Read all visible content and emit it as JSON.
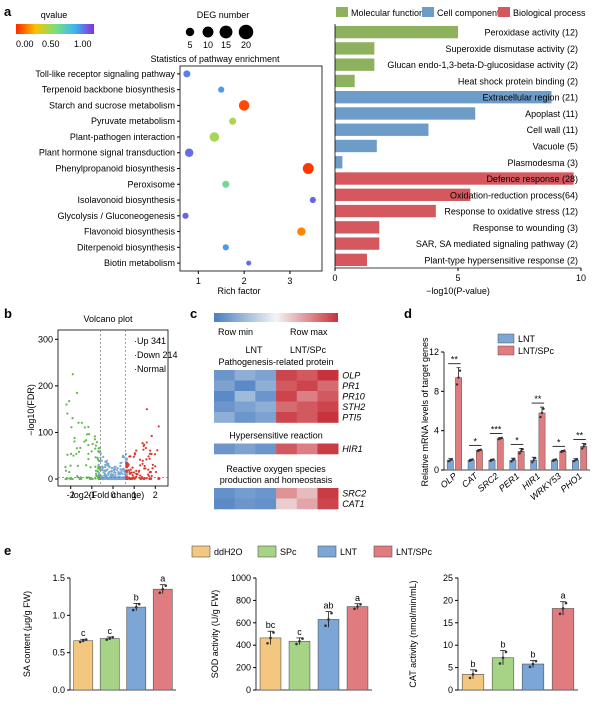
{
  "panels": {
    "a": "a",
    "b": "b",
    "c": "c",
    "d": "d",
    "e": "e"
  },
  "colors": {
    "molecular": "#8db15c",
    "cellular": "#6e9cc9",
    "biological": "#d4585e",
    "lnt": "#7ba6d6",
    "lntspc": "#e07b80",
    "ddh2o": "#f3c77f",
    "spc": "#a7d386",
    "up": "#d93a2e",
    "down": "#5fb84e",
    "normal": "#7aa7d4",
    "volcano_text_normal": "#4a7fc1"
  },
  "chart_data": [
    {
      "id": "a_dot",
      "type": "scatter",
      "title": "Statistics of pathway enrichment",
      "xlabel": "Rich factor",
      "xlim": [
        0.6,
        3.7
      ],
      "xticks": [
        1,
        2,
        3
      ],
      "colorbar": {
        "title": "qvalue",
        "ticks": [
          "0.00",
          "0.50",
          "1.00"
        ]
      },
      "size_legend": {
        "title": "DEG number",
        "values": [
          5,
          10,
          15,
          20
        ]
      },
      "categories": [
        "Toll-like receptor signaling pathway",
        "Terpenoid backbone biosynthesis",
        "Starch and sucrose metabolism",
        "Pyruvate metabolism",
        "Plant-pathogen interaction",
        "Plant hormone signal transduction",
        "Phenylpropanoid biosynthesis",
        "Peroxisome",
        "Isolavonoid biosynthesis",
        "Glycolysis / Gluconeogenesis",
        "Flavonoid biosynthesis",
        "Diterpenoid biosynthesis",
        "Biotin metabolism"
      ],
      "points": [
        {
          "x": 0.75,
          "deg": 3,
          "q": 0.85
        },
        {
          "x": 1.5,
          "deg": 2,
          "q": 0.8
        },
        {
          "x": 2.0,
          "deg": 9,
          "q": 0.05
        },
        {
          "x": 1.75,
          "deg": 3,
          "q": 0.4
        },
        {
          "x": 1.35,
          "deg": 7,
          "q": 0.42
        },
        {
          "x": 0.8,
          "deg": 5,
          "q": 0.88
        },
        {
          "x": 3.4,
          "deg": 10,
          "q": 0.02
        },
        {
          "x": 1.6,
          "deg": 3,
          "q": 0.55
        },
        {
          "x": 3.5,
          "deg": 2,
          "q": 0.9
        },
        {
          "x": 0.72,
          "deg": 2,
          "q": 0.9
        },
        {
          "x": 3.25,
          "deg": 5,
          "q": 0.15
        },
        {
          "x": 1.6,
          "deg": 2,
          "q": 0.8
        },
        {
          "x": 2.1,
          "deg": 1,
          "q": 0.88
        }
      ]
    },
    {
      "id": "a_bar",
      "type": "bar",
      "xlabel": "−log10(P-value)",
      "xlim": [
        0,
        10
      ],
      "xticks": [
        0,
        5,
        10
      ],
      "legend": [
        "Molecular function",
        "Cell component",
        "Biological process"
      ],
      "categories": [
        "Peroxidase activity (12)",
        "Superoxide dismutase activity (2)",
        "Glucan endo-1,3-beta-D-glucosidase activity (2)",
        "Heat shock protein binding (2)",
        "Extracellular region (21)",
        "Apoplast (11)",
        "Cell wall (11)",
        "Vacuole (5)",
        "Plasmodesma (3)",
        "Defence response (28)",
        "Oxidation-reduction process(64)",
        "Response to oxidative stress (12)",
        "Response to wounding (3)",
        "SAR, SA mediated signaling pathway (2)",
        "Plant-type hypersensitive response (2)"
      ],
      "values": [
        5.0,
        1.6,
        1.6,
        0.8,
        8.8,
        5.7,
        3.8,
        1.7,
        0.3,
        9.7,
        5.5,
        4.1,
        1.8,
        1.8,
        1.3
      ],
      "groups": [
        "molecular",
        "molecular",
        "molecular",
        "molecular",
        "cellular",
        "cellular",
        "cellular",
        "cellular",
        "cellular",
        "biological",
        "biological",
        "biological",
        "biological",
        "biological",
        "biological"
      ]
    },
    {
      "id": "b_volcano",
      "type": "scatter",
      "title": "Volcano plot",
      "xlabel": "log2(Fold change)",
      "ylabel": "−log10(FDR)",
      "xlim": [
        -2.6,
        2.6
      ],
      "ylim": [
        -15,
        320
      ],
      "xticks": [
        -2,
        -1,
        0,
        1,
        2
      ],
      "yticks": [
        0,
        100,
        200,
        300
      ],
      "legend": {
        "up": "Up 341",
        "down": "Down 214",
        "normal": "Normal"
      },
      "counts": {
        "up": 341,
        "down": 214
      }
    },
    {
      "id": "c_heatmap",
      "type": "heatmap",
      "scale": {
        "min_label": "Row min",
        "max_label": "Row max"
      },
      "columns": {
        "lnt": "LNT",
        "lntspc": "LNT/SPc"
      },
      "groups": [
        {
          "title": "Pathogenesis-related protein",
          "genes": [
            "OLP",
            "PR1",
            "PR10",
            "STH2",
            "PTI5"
          ],
          "rows": [
            [
              -0.8,
              -0.6,
              -0.7,
              0.9,
              0.8,
              1.0
            ],
            [
              -0.7,
              -0.9,
              -0.6,
              0.8,
              0.9,
              0.7
            ],
            [
              -0.9,
              -0.5,
              -0.8,
              0.9,
              0.6,
              0.8
            ],
            [
              -0.8,
              -0.7,
              -0.6,
              0.7,
              0.8,
              0.9
            ],
            [
              -0.6,
              -0.8,
              -0.7,
              0.9,
              0.8,
              1.0
            ]
          ]
        },
        {
          "title": "Hypersensitive reaction",
          "genes": [
            "HIR1"
          ],
          "rows": [
            [
              -0.8,
              -0.7,
              -0.8,
              0.8,
              0.6,
              0.95
            ]
          ]
        },
        {
          "title": "Reactive oxygen species production and homeostasis",
          "title_lines": [
            "Reactive oxygen species",
            "production and homeostasis"
          ],
          "genes": [
            "SRC2",
            "CAT1"
          ],
          "rows": [
            [
              -0.85,
              -0.75,
              -0.8,
              0.5,
              0.3,
              0.95
            ],
            [
              -0.9,
              -0.8,
              -0.85,
              0.2,
              0.4,
              0.9
            ]
          ]
        }
      ]
    },
    {
      "id": "d_bar",
      "type": "bar",
      "ylabel": "Relative mRNA levels of target genes",
      "ylim": [
        0,
        12
      ],
      "yticks": [
        0,
        4,
        8,
        12
      ],
      "categories": [
        "OLP",
        "CAT",
        "SRC2",
        "PER1",
        "HIR1",
        "WRKY53",
        "PHO1"
      ],
      "series": [
        {
          "name": "LNT",
          "values": [
            1.0,
            1.0,
            1.0,
            1.0,
            1.0,
            1.0,
            1.0
          ],
          "errors": [
            0.15,
            0.1,
            0.1,
            0.2,
            0.3,
            0.1,
            0.15
          ]
        },
        {
          "name": "LNT/SPc",
          "values": [
            9.4,
            2.0,
            3.2,
            1.9,
            5.8,
            1.9,
            2.4
          ],
          "errors": [
            1.0,
            0.1,
            0.1,
            0.3,
            0.6,
            0.1,
            0.3
          ]
        }
      ],
      "significance": [
        "**",
        "*",
        "***",
        "*",
        "**",
        "*",
        "**"
      ]
    },
    {
      "id": "e_sa",
      "type": "bar",
      "ylabel": "SA content (μg/g FW)",
      "ylim": [
        0,
        1.5
      ],
      "yticks": [
        "0.0",
        "0.5",
        "1.0",
        "1.5"
      ],
      "categories": [
        "ddH2O",
        "SPc",
        "LNT",
        "LNT/SPc"
      ],
      "values": [
        0.66,
        0.69,
        1.11,
        1.35
      ],
      "errors": [
        0.02,
        0.02,
        0.05,
        0.06
      ],
      "letters": [
        "c",
        "c",
        "b",
        "a"
      ]
    },
    {
      "id": "e_sod",
      "type": "bar",
      "ylabel": "SOD activity (U/g FW)",
      "ylim": [
        0,
        1000
      ],
      "yticks": [
        "0",
        "200",
        "400",
        "600",
        "800",
        "1000"
      ],
      "categories": [
        "ddH2O",
        "SPc",
        "LNT",
        "LNT/SPc"
      ],
      "values": [
        465,
        435,
        630,
        745
      ],
      "errors": [
        60,
        30,
        70,
        25
      ],
      "letters": [
        "bc",
        "c",
        "ab",
        "a"
      ]
    },
    {
      "id": "e_cat",
      "type": "bar",
      "ylabel": "CAT activity (nmol/min/mL)",
      "ylim": [
        0,
        25
      ],
      "yticks": [
        "0",
        "5",
        "10",
        "15",
        "20",
        "25"
      ],
      "categories": [
        "ddH2O",
        "SPc",
        "LNT",
        "LNT/SPc"
      ],
      "values": [
        3.5,
        7.2,
        5.8,
        18.2
      ],
      "errors": [
        1.0,
        1.6,
        0.8,
        1.5
      ],
      "letters": [
        "b",
        "b",
        "b",
        "a"
      ]
    }
  ],
  "legend_e": [
    "ddH2O",
    "SPc",
    "LNT",
    "LNT/SPc"
  ]
}
